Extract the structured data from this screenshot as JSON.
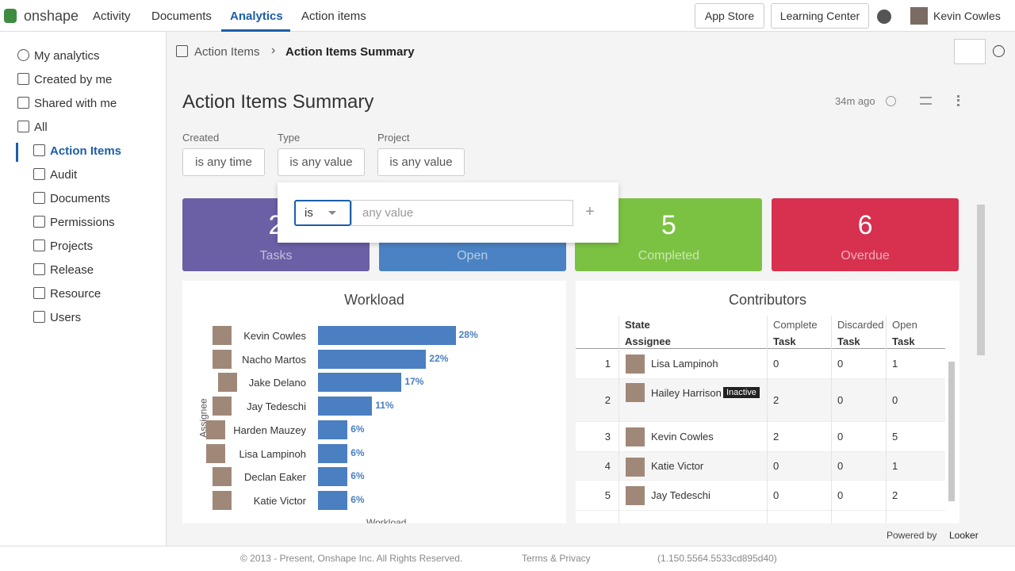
{
  "nav": {
    "logo": "onshape",
    "tabs": [
      "Activity",
      "Documents",
      "Analytics",
      "Action items"
    ],
    "buttons": [
      "App Store",
      "Learning Center"
    ],
    "user": "Kevin Cowles"
  },
  "sidebar": {
    "items": [
      "My analytics",
      "Created by me",
      "Shared with me",
      "All"
    ],
    "folders": [
      "Action Items",
      "Audit",
      "Documents",
      "Permissions",
      "Projects",
      "Release",
      "Resource",
      "Users"
    ]
  },
  "breadcrumb": [
    "Action Items",
    "Action Items Summary"
  ],
  "dashboard": {
    "title": "Action Items Summary",
    "updated": "34m ago",
    "filters": [
      {
        "label": "Created",
        "value": "is any time"
      },
      {
        "label": "Type",
        "value": "is any value"
      },
      {
        "label": "Project",
        "value": "is any value"
      }
    ],
    "popup": {
      "operator": "is",
      "placeholder": "any value"
    },
    "tiles": [
      {
        "value": "2",
        "label": "Tasks"
      },
      {
        "label": "Open"
      },
      {
        "value": "5",
        "label": "Completed"
      },
      {
        "value": "6",
        "label": "Overdue"
      }
    ]
  },
  "workload": {
    "title": "Workload",
    "y_label": "Assignee",
    "x_label": "Workload",
    "color": "#4a7fc1",
    "categories": [
      "Kevin Cowles",
      "Nacho Martos",
      "Jake Delano",
      "Jay Tedeschi",
      "Harden Mauzey",
      "Lisa Lampinoh",
      "Declan Eaker",
      "Katie Victor"
    ],
    "values": [
      28,
      22,
      17,
      11,
      6,
      6,
      6,
      6
    ],
    "value_labels": [
      "28%",
      "22%",
      "17%",
      "11%",
      "6%",
      "6%",
      "6%",
      "6%"
    ]
  },
  "contributors": {
    "title": "Contributors",
    "header_top": [
      "State",
      "Complete",
      "Discarded",
      "Open"
    ],
    "header": [
      "Assignee",
      "Task",
      "Task",
      "Task"
    ],
    "rows": [
      [
        "1",
        "Lisa Lampinoh",
        "0",
        "0",
        "1"
      ],
      [
        "2",
        "Hailey Harrison",
        "2",
        "0",
        "0"
      ],
      [
        "3",
        "Kevin Cowles",
        "2",
        "0",
        "5"
      ],
      [
        "4",
        "Katie Victor",
        "0",
        "0",
        "1"
      ],
      [
        "5",
        "Jay Tedeschi",
        "0",
        "0",
        "2"
      ]
    ],
    "badge": "Inactive"
  },
  "footer": {
    "copyright": "© 2013 - Present, Onshape Inc. All Rights Reserved.",
    "terms": "Terms & Privacy",
    "version": "(1.150.5564.5533cd895d40)",
    "powered": "Powered by",
    "brand": "Looker"
  }
}
